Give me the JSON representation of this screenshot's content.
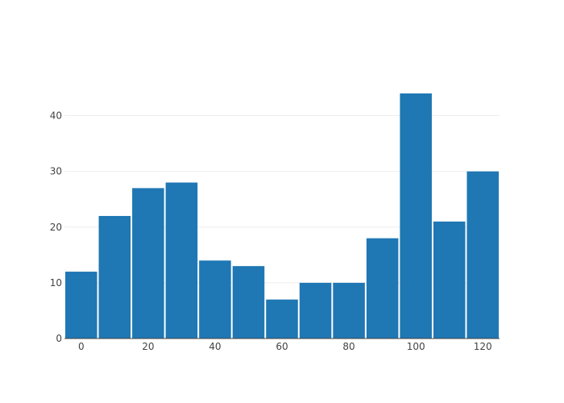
{
  "chart_data": {
    "type": "bar",
    "subtype": "histogram",
    "bins": [
      {
        "x0": -5,
        "x1": 5,
        "value": 12
      },
      {
        "x0": 5,
        "x1": 15,
        "value": 22
      },
      {
        "x0": 15,
        "x1": 25,
        "value": 27
      },
      {
        "x0": 25,
        "x1": 35,
        "value": 28
      },
      {
        "x0": 35,
        "x1": 45,
        "value": 14
      },
      {
        "x0": 45,
        "x1": 55,
        "value": 13
      },
      {
        "x0": 55,
        "x1": 65,
        "value": 7
      },
      {
        "x0": 65,
        "x1": 75,
        "value": 10
      },
      {
        "x0": 75,
        "x1": 85,
        "value": 10
      },
      {
        "x0": 85,
        "x1": 95,
        "value": 18
      },
      {
        "x0": 95,
        "x1": 105,
        "value": 44
      },
      {
        "x0": 105,
        "x1": 115,
        "value": 21
      },
      {
        "x0": 115,
        "x1": 125,
        "value": 30
      }
    ],
    "xlim": [
      -5,
      125
    ],
    "ylim": [
      0,
      46.3
    ],
    "xticks": [
      0,
      20,
      40,
      60,
      80,
      100,
      120
    ],
    "yticks": [
      0,
      10,
      20,
      30,
      40
    ],
    "title": "",
    "xlabel": "",
    "ylabel": "",
    "grid": "horizontal",
    "legend": "none",
    "bar_color": "#1f77b4"
  }
}
